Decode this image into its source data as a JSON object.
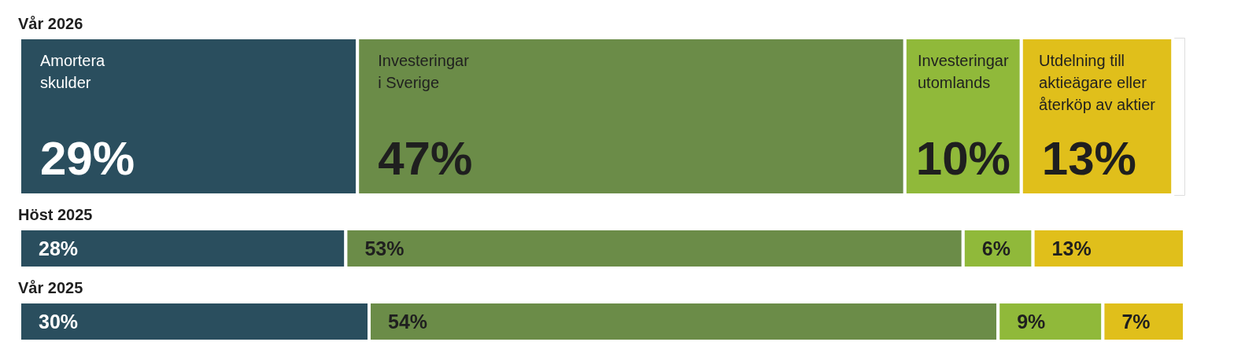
{
  "chart_data": {
    "type": "bar",
    "orientation": "horizontal",
    "stacked": true,
    "categories": [
      "Vår 2026",
      "Höst 2025",
      "Vår 2025"
    ],
    "series": [
      {
        "name": "Amortera\nskulder",
        "color": "#2a4e5e",
        "values": [
          29,
          28,
          30
        ],
        "value_labels": [
          "29%",
          "28%",
          "30%"
        ]
      },
      {
        "name": "Investeringar\ni Sverige",
        "color": "#6b8c48",
        "values": [
          47,
          53,
          54
        ],
        "value_labels": [
          "47%",
          "53%",
          "54%"
        ]
      },
      {
        "name": "Investeringar\nutomlands",
        "color": "#90b93a",
        "values": [
          10,
          6,
          9
        ],
        "value_labels": [
          "10%",
          "6%",
          "9%"
        ]
      },
      {
        "name": "Utdelning till\naktieägare eller\nåterköp av aktier",
        "color": "#e0bf1b",
        "values": [
          13,
          13,
          7
        ],
        "value_labels": [
          "13%",
          "13%",
          "7%"
        ]
      }
    ]
  }
}
